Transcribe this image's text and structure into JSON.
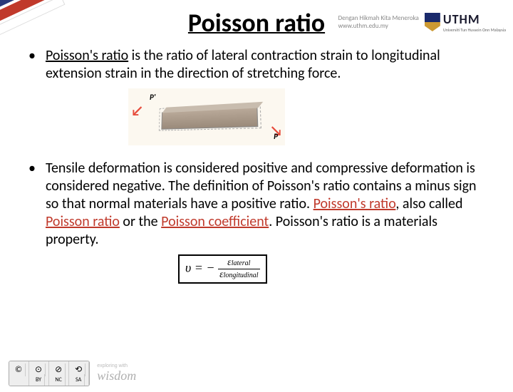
{
  "header": {
    "tagline": "Dengan Hikmah Kita Meneroka",
    "url": "www.uthm.edu.my",
    "logo_text": "UTHM",
    "logo_sub": "Universiti Tun Hussein Onn Malaysia"
  },
  "title": "Poisson ratio",
  "bullets": {
    "b1_pre": "Poisson's ratio",
    "b1_post": " is the ratio of lateral contraction strain to longitudinal extension strain in the direction of stretching force.",
    "b2_a": "Tensile deformation is considered positive and compressive deformation is considered negative. The definition of Poisson's ratio contains a minus sign so that normal materials have a positive ratio. ",
    "b2_hl1": "Poisson's ratio",
    "b2_b": ", also called ",
    "b2_hl2": "Poisson ratio",
    "b2_c": " or the ",
    "b2_hl3": "Poisson coefficient",
    "b2_d": ". Poisson's ratio is a materials property."
  },
  "diagram": {
    "label_p1": "P'",
    "label_p2": "P",
    "arrow_left": "↙",
    "arrow_right": "↘"
  },
  "formula": {
    "lhs": "υ = −",
    "num_sym": "ε",
    "num_sub": "lateral",
    "den_sym": "ε",
    "den_sub": "longitudinal"
  },
  "footer": {
    "cc_by": "BY",
    "cc_nc": "NC",
    "cc_sa": "SA",
    "wisdom_pre": "exploring with",
    "wisdom": "wisdom"
  }
}
